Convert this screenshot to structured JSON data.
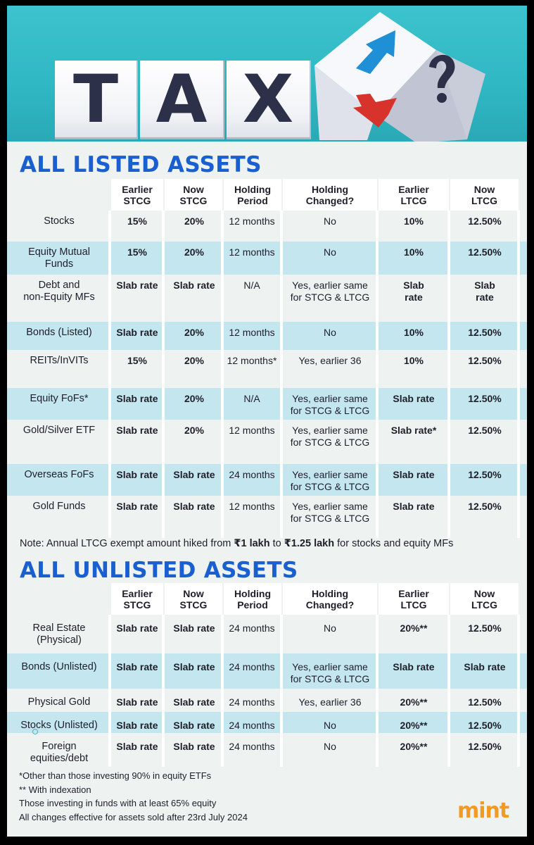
{
  "hero": {
    "letters": [
      "T",
      "A",
      "X"
    ],
    "cube_symbol": "?",
    "icons": [
      "up-arrow-icon",
      "down-arrow-icon",
      "question-mark-icon"
    ],
    "colors": {
      "background": "#34bcc7",
      "letters": "#2c3049",
      "up_arrow": "#1f8fd6",
      "down_arrow": "#d8322c",
      "question": "#2c3049"
    }
  },
  "listed": {
    "title": "ALL LISTED ASSETS",
    "headers": [
      "Earlier\nSTCG",
      "Now\nSTCG",
      "Holding\nPeriod",
      "Holding\nChanged?",
      "Earlier\nLTCG",
      "Now\nLTCG"
    ],
    "rows": [
      {
        "asset": "Stocks",
        "earlier_stcg": "15%",
        "now_stcg": "20%",
        "holding_period": "12 months",
        "holding_changed": "No",
        "earlier_ltcg": "10%",
        "now_ltcg": "12.50%"
      },
      {
        "asset": "Equity Mutual\nFunds",
        "earlier_stcg": "15%",
        "now_stcg": "20%",
        "holding_period": "12 months",
        "holding_changed": "No",
        "earlier_ltcg": "10%",
        "now_ltcg": "12.50%"
      },
      {
        "asset": "Debt and\nnon-Equity MFs",
        "earlier_stcg": "Slab rate",
        "now_stcg": "Slab rate",
        "holding_period": "N/A",
        "holding_changed": "Yes, earlier same\nfor STCG & LTCG",
        "earlier_ltcg": "Slab\nrate",
        "now_ltcg": "Slab\nrate"
      },
      {
        "asset": "Bonds (Listed)",
        "earlier_stcg": "Slab rate",
        "now_stcg": "20%",
        "holding_period": "12 months",
        "holding_changed": "No",
        "earlier_ltcg": "10%",
        "now_ltcg": "12.50%"
      },
      {
        "asset": "REITs/InVITs",
        "earlier_stcg": "15%",
        "now_stcg": "20%",
        "holding_period": "12 months*",
        "holding_changed": "Yes, earlier 36",
        "earlier_ltcg": "10%",
        "now_ltcg": "12.50%"
      },
      {
        "asset": "Equity FoFs*",
        "earlier_stcg": "Slab rate",
        "now_stcg": "20%",
        "holding_period": "N/A",
        "holding_changed": "Yes, earlier same\nfor STCG & LTCG",
        "earlier_ltcg": "Slab rate",
        "now_ltcg": "12.50%"
      },
      {
        "asset": "Gold/Silver ETF",
        "earlier_stcg": "Slab rate",
        "now_stcg": "20%",
        "holding_period": "12 months",
        "holding_changed": "Yes, earlier same\nfor STCG & LTCG",
        "earlier_ltcg": "Slab rate*",
        "now_ltcg": "12.50%"
      },
      {
        "asset": "Overseas FoFs",
        "earlier_stcg": "Slab rate",
        "now_stcg": "Slab rate",
        "holding_period": "24 months",
        "holding_changed": "Yes, earlier same\nfor STCG & LTCG",
        "earlier_ltcg": "Slab rate",
        "now_ltcg": "12.50%"
      },
      {
        "asset": "Gold Funds",
        "earlier_stcg": "Slab rate",
        "now_stcg": "Slab rate",
        "holding_period": "12 months",
        "holding_changed": "Yes, earlier same\nfor STCG & LTCG",
        "earlier_ltcg": "Slab rate",
        "now_ltcg": "12.50%"
      }
    ]
  },
  "note": {
    "prefix": "Note: Annual LTCG exempt amount hiked from ",
    "from": "₹1 lakh",
    "middle": " to ",
    "to": "₹1.25 lakh",
    "suffix": " for stocks and equity MFs"
  },
  "unlisted": {
    "title": "ALL UNLISTED ASSETS",
    "headers": [
      "Earlier\nSTCG",
      "Now\nSTCG",
      "Holding\nPeriod",
      "Holding\nChanged?",
      "Earlier\nLTCG",
      "Now\nLTCG"
    ],
    "rows": [
      {
        "asset": "Real Estate\n(Physical)",
        "earlier_stcg": "Slab rate",
        "now_stcg": "Slab rate",
        "holding_period": "24 months",
        "holding_changed": "No",
        "earlier_ltcg": "20%**",
        "now_ltcg": "12.50%"
      },
      {
        "asset": "Bonds (Unlisted)",
        "earlier_stcg": "Slab rate",
        "now_stcg": "Slab rate",
        "holding_period": "24 months",
        "holding_changed": "Yes, earlier same\nfor STCG & LTCG",
        "earlier_ltcg": "Slab rate",
        "now_ltcg": "Slab rate"
      },
      {
        "asset": "Physical Gold",
        "earlier_stcg": "Slab rate",
        "now_stcg": "Slab rate",
        "holding_period": "24 months",
        "holding_changed": "Yes, earlier 36",
        "earlier_ltcg": "20%**",
        "now_ltcg": "12.50%"
      },
      {
        "asset": "Stocks (Unlisted)",
        "earlier_stcg": "Slab rate",
        "now_stcg": "Slab rate",
        "holding_period": "24 months",
        "holding_changed": "No",
        "earlier_ltcg": "20%**",
        "now_ltcg": "12.50%"
      },
      {
        "asset": "Foreign\nequities/debt",
        "earlier_stcg": "Slab rate",
        "now_stcg": "Slab rate",
        "holding_period": "24 months",
        "holding_changed": "No",
        "earlier_ltcg": "20%**",
        "now_ltcg": "12.50%"
      }
    ]
  },
  "footnotes": [
    "*Other than those investing 90% in equity ETFs",
    "** With indexation",
    "Those investing in funds with at least 65% equity",
    "All changes effective for assets sold after 23rd July 2024"
  ],
  "brand": "mint"
}
